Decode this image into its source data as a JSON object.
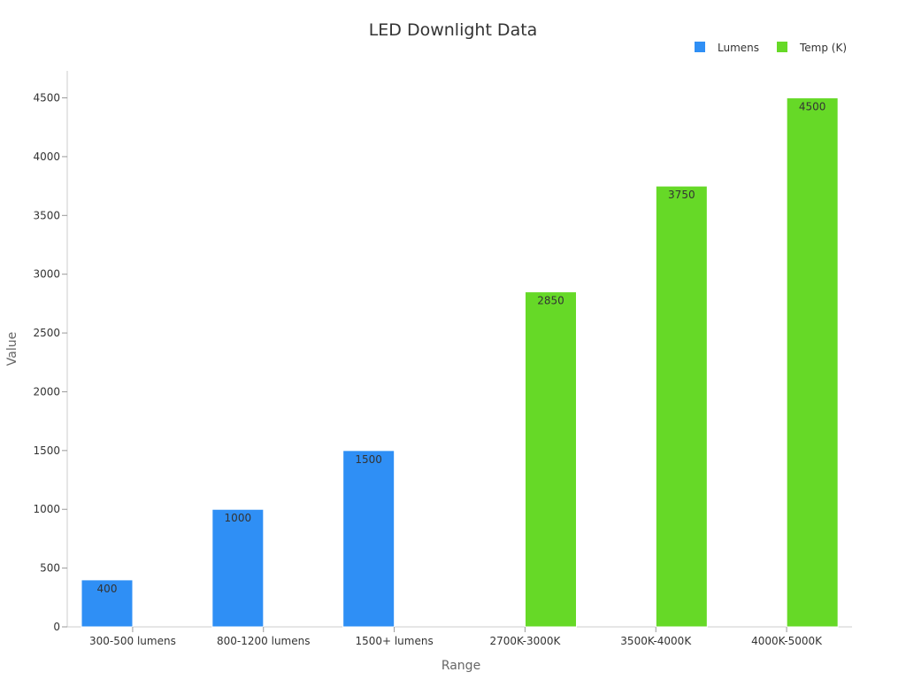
{
  "chart_data": {
    "type": "bar",
    "title": "LED Downlight Data",
    "xlabel": "Range",
    "ylabel": "Value",
    "categories": [
      "300-500 lumens",
      "800-1200 lumens",
      "1500+ lumens",
      "2700K-3000K",
      "3500K-4000K",
      "4000K-5000K"
    ],
    "series": [
      {
        "name": "Lumens",
        "color": "#2f8ff5",
        "values": [
          400,
          1000,
          1500,
          null,
          null,
          null
        ]
      },
      {
        "name": "Temp (K)",
        "color": "#66d927",
        "values": [
          null,
          null,
          null,
          2850,
          3750,
          4500
        ]
      }
    ],
    "ylim": [
      0,
      4730
    ],
    "yticks": [
      0,
      500,
      1000,
      1500,
      2000,
      2500,
      3000,
      3500,
      4000,
      4500
    ],
    "grid": false,
    "legend_position": "top-right",
    "data_labels": true
  }
}
